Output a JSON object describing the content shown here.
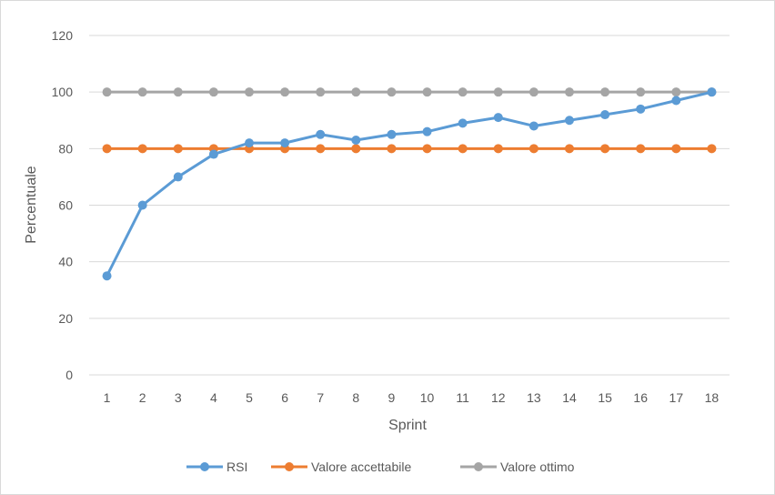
{
  "chart_data": {
    "type": "line",
    "title": "",
    "xlabel": "Sprint",
    "ylabel": "Percentuale",
    "categories": [
      "1",
      "2",
      "3",
      "4",
      "5",
      "6",
      "7",
      "8",
      "9",
      "10",
      "11",
      "12",
      "13",
      "14",
      "15",
      "16",
      "17",
      "18"
    ],
    "ylim": [
      0,
      120
    ],
    "yticks": [
      0,
      20,
      40,
      60,
      80,
      100,
      120
    ],
    "grid": true,
    "legend_position": "bottom",
    "series": [
      {
        "name": "RSI",
        "color": "#5b9bd5",
        "values": [
          35,
          60,
          70,
          78,
          82,
          82,
          85,
          83,
          85,
          86,
          89,
          91,
          88,
          90,
          92,
          94,
          97,
          100
        ]
      },
      {
        "name": "Valore accettabile",
        "color": "#ed7d31",
        "values": [
          80,
          80,
          80,
          80,
          80,
          80,
          80,
          80,
          80,
          80,
          80,
          80,
          80,
          80,
          80,
          80,
          80,
          80
        ]
      },
      {
        "name": "Valore ottimo",
        "color": "#a5a5a5",
        "values": [
          100,
          100,
          100,
          100,
          100,
          100,
          100,
          100,
          100,
          100,
          100,
          100,
          100,
          100,
          100,
          100,
          100,
          100
        ]
      }
    ]
  }
}
